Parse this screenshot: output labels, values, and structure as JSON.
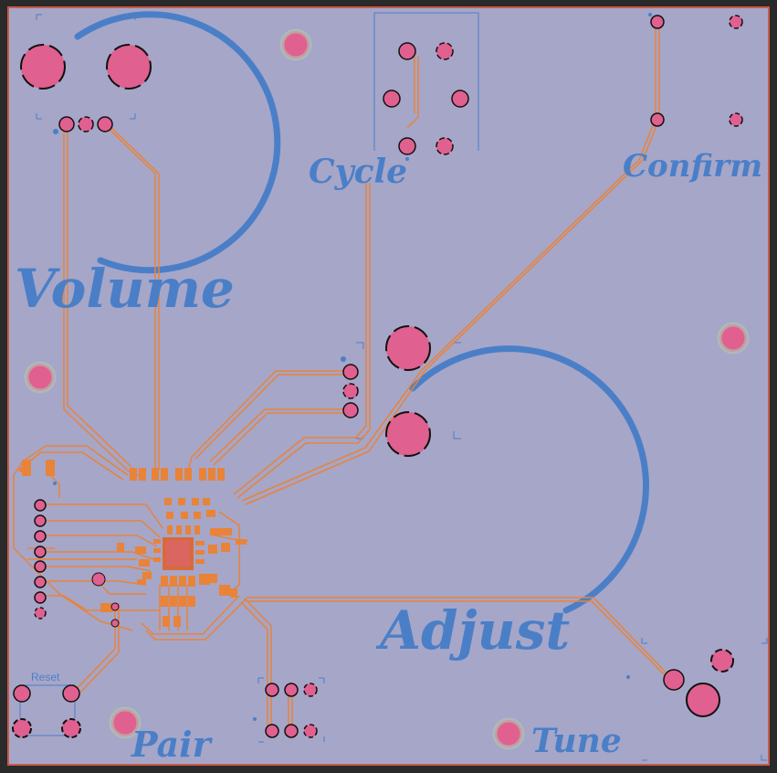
{
  "board": {
    "labels": {
      "volume": "Volume",
      "cycle": "Cycle",
      "confirm": "Confirm",
      "adjust": "Adjust",
      "pair": "Pair",
      "tune": "Tune",
      "reset": "Reset"
    },
    "colors": {
      "substrate": "#a6a6c8",
      "edge_cut": "#c85a4a",
      "copper_trace": "#e8833a",
      "pad": "#e06090",
      "silkscreen": "#4a7fc8",
      "courtyard": "#b0c8b0"
    }
  }
}
